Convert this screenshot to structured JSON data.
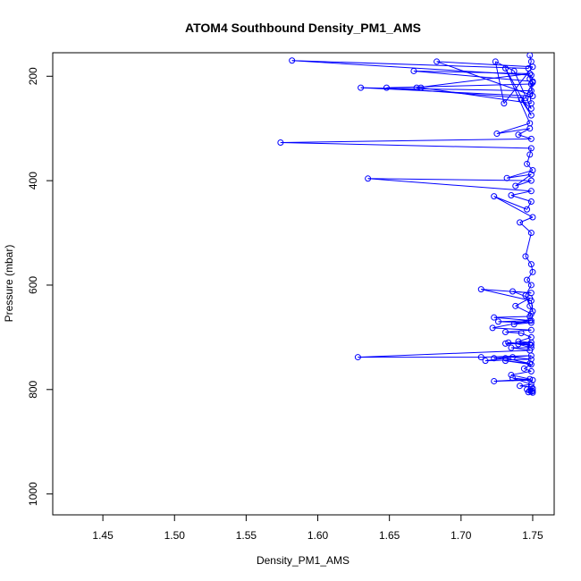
{
  "chart_data": {
    "type": "line",
    "title": "ATOM4 Southbound Density_PM1_AMS",
    "xlabel": "Density_PM1_AMS",
    "ylabel": "Pressure (mbar)",
    "xlim": [
      1.415,
      1.765
    ],
    "ylim": [
      1040,
      155
    ],
    "y_inverted": true,
    "x_ticks": [
      "1.45",
      "1.50",
      "1.55",
      "1.60",
      "1.65",
      "1.70",
      "1.75"
    ],
    "x_tick_values": [
      1.45,
      1.5,
      1.55,
      1.6,
      1.65,
      1.7,
      1.75
    ],
    "y_ticks": [
      "200",
      "400",
      "600",
      "800",
      "1000"
    ],
    "y_tick_values": [
      200,
      400,
      600,
      800,
      1000
    ],
    "grid": false,
    "legend": "none",
    "series_color": "#0000ff",
    "marker": "open-circle",
    "x": [
      1.748,
      1.749,
      1.747,
      1.582,
      1.749,
      1.748,
      1.75,
      1.749,
      1.63,
      1.75,
      1.749,
      1.648,
      1.745,
      1.75,
      1.667,
      1.748,
      1.669,
      1.672,
      1.749,
      1.748,
      1.683,
      1.75,
      1.73,
      1.724,
      1.737,
      1.749,
      1.742,
      1.749,
      1.731,
      1.748,
      1.725,
      1.748,
      1.74,
      1.749,
      1.574,
      1.749,
      1.748,
      1.746,
      1.75,
      1.732,
      1.749,
      1.738,
      1.749,
      1.635,
      1.749,
      1.735,
      1.749,
      1.746,
      1.723,
      1.75,
      1.741,
      1.749,
      1.745,
      1.749,
      1.75,
      1.746,
      1.749,
      1.745,
      1.748,
      1.75,
      1.749,
      1.714,
      1.749,
      1.736,
      1.748,
      1.738,
      1.749,
      1.748,
      1.723,
      1.749,
      1.726,
      1.749,
      1.737,
      1.748,
      1.722,
      1.749,
      1.731,
      1.742,
      1.749,
      1.74,
      1.749,
      1.731,
      1.748,
      1.733,
      1.749,
      1.74,
      1.749,
      1.735,
      1.748,
      1.628,
      1.714,
      1.749,
      1.723,
      1.736,
      1.749,
      1.717,
      1.731,
      1.748,
      1.731,
      1.749,
      1.744,
      1.749,
      1.735,
      1.748,
      1.723,
      1.75,
      1.736,
      1.749,
      1.741,
      1.749,
      1.75,
      1.746,
      1.748,
      1.75,
      1.749,
      1.747,
      1.75
    ],
    "y": [
      160,
      172,
      185,
      170,
      198,
      205,
      212,
      228,
      222,
      238,
      215,
      222,
      242,
      210,
      190,
      195,
      222,
      222,
      252,
      235,
      172,
      182,
      252,
      172,
      190,
      262,
      245,
      275,
      185,
      290,
      310,
      300,
      312,
      320,
      327,
      338,
      350,
      368,
      380,
      395,
      388,
      410,
      400,
      396,
      420,
      428,
      440,
      455,
      430,
      470,
      480,
      500,
      545,
      560,
      575,
      590,
      600,
      620,
      640,
      650,
      630,
      608,
      615,
      612,
      625,
      640,
      655,
      660,
      662,
      668,
      670,
      672,
      675,
      668,
      682,
      686,
      690,
      692,
      700,
      708,
      710,
      712,
      713,
      710,
      715,
      713,
      720,
      720,
      725,
      738,
      738,
      735,
      740,
      738,
      742,
      745,
      740,
      750,
      745,
      752,
      760,
      765,
      772,
      780,
      784,
      782,
      778,
      790,
      793,
      795,
      798,
      800,
      802,
      803,
      804,
      805,
      806
    ]
  }
}
